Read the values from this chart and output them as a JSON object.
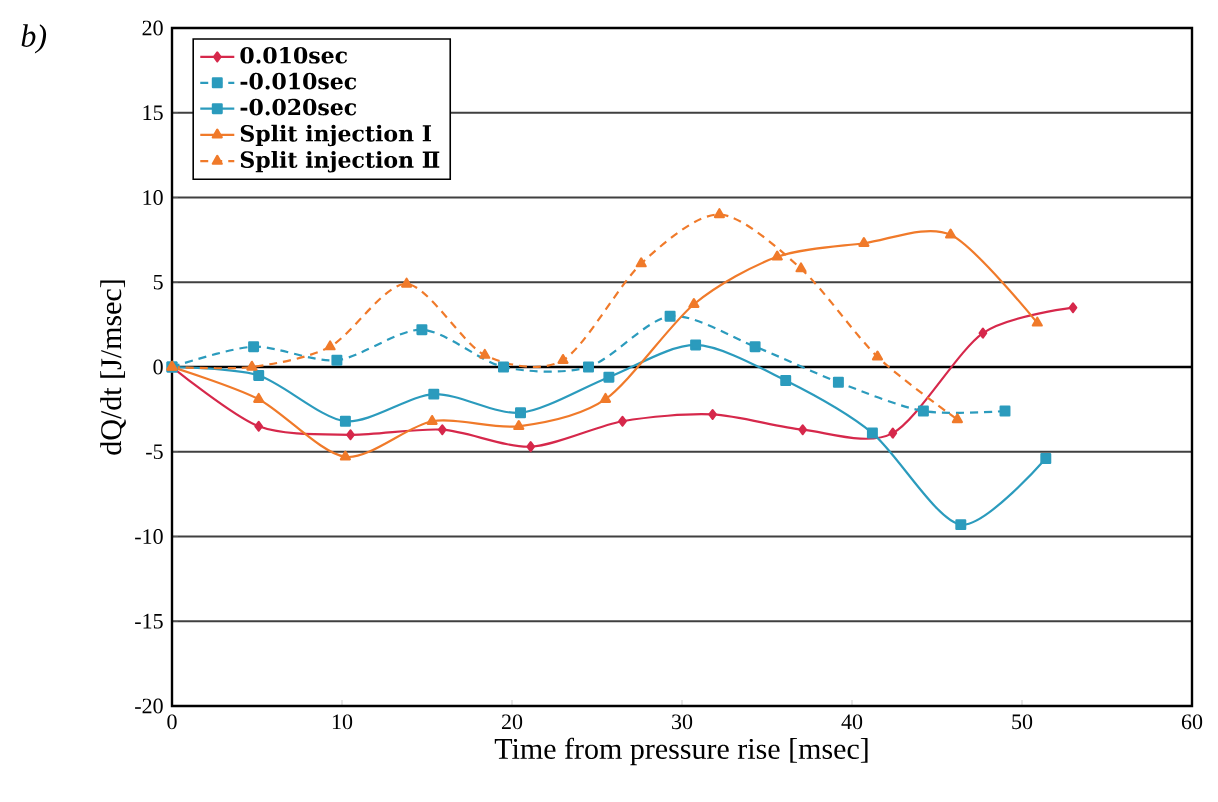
{
  "chart_data": {
    "type": "line",
    "xlabel": "Time from pressure rise [msec]",
    "ylabel": "dQ/dt [J/msec]",
    "annotations": [
      "*b)*"
    ],
    "xlim": [
      0,
      60
    ],
    "xticks": [
      0,
      10,
      20,
      30,
      40,
      50,
      60
    ],
    "ylim": [
      -20,
      20
    ],
    "yticks": [
      -20,
      -15,
      -10,
      -5,
      0,
      5,
      10,
      15,
      20
    ],
    "grid": "y",
    "legend": "top left",
    "series": [
      {
        "name": "0.010sec",
        "color": "#d6284b",
        "marker": "diamond",
        "line_style": "solid",
        "x": [
          0,
          5.1,
          10.5,
          15.9,
          21.1,
          26.5,
          31.8,
          37.1,
          42.4,
          47.7,
          53
        ],
        "values": [
          0,
          -3.5,
          -4.0,
          -3.7,
          -4.7,
          -3.2,
          -2.8,
          -3.7,
          -3.9,
          2.0,
          3.5
        ]
      },
      {
        "name": "-0.010sec",
        "color": "#2b9bbd",
        "marker": "square",
        "line_style": "dashed",
        "x": [
          0,
          4.8,
          9.7,
          14.7,
          19.5,
          24.5,
          29.3,
          34.3,
          39.2,
          44.2,
          49
        ],
        "values": [
          0,
          1.2,
          0.4,
          2.2,
          0,
          0,
          3.0,
          1.2,
          -0.9,
          -2.6,
          -2.6
        ]
      },
      {
        "name": "-0.020sec",
        "color": "#2b9bbd",
        "marker": "square",
        "line_style": "solid",
        "x": [
          0,
          5.1,
          10.2,
          15.4,
          20.5,
          25.7,
          30.8,
          36.1,
          41.2,
          46.4,
          51.4
        ],
        "values": [
          0,
          -0.5,
          -3.2,
          -1.6,
          -2.7,
          -0.6,
          1.3,
          -0.8,
          -3.9,
          -9.3,
          -5.4
        ]
      },
      {
        "name": "Split injection Ⅰ",
        "color": "#f07a2a",
        "marker": "triangle",
        "line_style": "solid",
        "x": [
          0,
          5.1,
          10.2,
          15.3,
          20.4,
          25.5,
          30.7,
          35.6,
          40.7,
          45.8,
          50.9
        ],
        "values": [
          0,
          -1.9,
          -5.3,
          -3.2,
          -3.5,
          -1.9,
          3.7,
          6.5,
          7.3,
          7.8,
          2.6
        ]
      },
      {
        "name": "Split injection Ⅱ",
        "color": "#f07a2a",
        "marker": "triangle",
        "line_style": "dashed",
        "x": [
          0,
          4.7,
          9.3,
          13.8,
          18.4,
          23,
          27.6,
          32.2,
          37,
          41.5,
          46.2
        ],
        "values": [
          0,
          0,
          1.2,
          4.9,
          0.7,
          0.4,
          6.1,
          9.0,
          5.8,
          0.6,
          -3.1
        ]
      }
    ]
  }
}
